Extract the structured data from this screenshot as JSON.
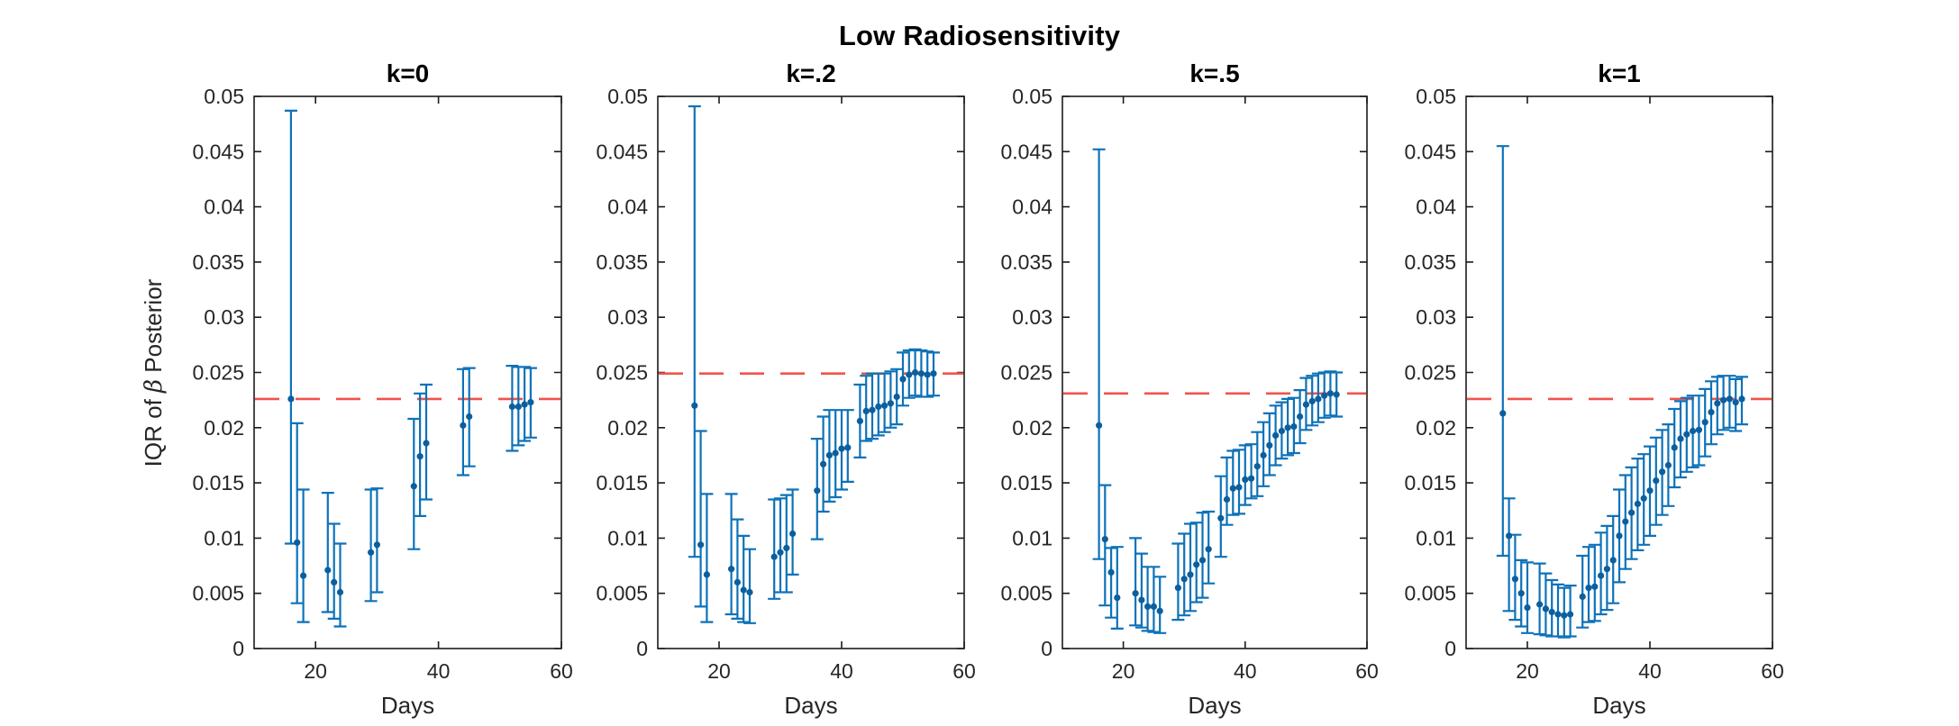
{
  "figure": {
    "title": "Low Radiosensitivity",
    "ylabel_prefix": "IQR of ",
    "ylabel_symbol": "β",
    "ylabel_suffix": " Posterior",
    "colors": {
      "errorbar_line": "#0d72b9",
      "marker_dot": "#0b5f9e",
      "reference_line": "#f0534a",
      "axis_box": "#1c1c1c",
      "tick_text": "#262626"
    }
  },
  "chart_data": [
    {
      "type": "errorbar",
      "title": "k=0",
      "xlabel": "Days",
      "xlim": [
        10,
        60
      ],
      "ylim": [
        0,
        0.05
      ],
      "x_ticks": [
        20,
        40,
        60
      ],
      "x_tick_labels": [
        "20",
        "40",
        "60"
      ],
      "y_ticks": [
        0,
        0.005,
        0.01,
        0.015,
        0.02,
        0.025,
        0.03,
        0.035,
        0.04,
        0.045,
        0.05
      ],
      "y_tick_labels": [
        "0",
        "0.005",
        "0.01",
        "0.015",
        "0.02",
        "0.025",
        "0.03",
        "0.035",
        "0.04",
        "0.045",
        "0.05"
      ],
      "reference_line_y": 0.0226,
      "legend": null,
      "grid": false,
      "points": [
        [
          16,
          0.0226,
          0.0095,
          0.0487
        ],
        [
          17,
          0.0096,
          0.0041,
          0.0204
        ],
        [
          18,
          0.0066,
          0.0024,
          0.0144
        ],
        [
          22,
          0.0071,
          0.0033,
          0.0141
        ],
        [
          23,
          0.006,
          0.0027,
          0.0113
        ],
        [
          24,
          0.0051,
          0.002,
          0.0095
        ],
        [
          29,
          0.0087,
          0.0043,
          0.0144
        ],
        [
          30,
          0.0094,
          0.0051,
          0.0145
        ],
        [
          36,
          0.0147,
          0.009,
          0.0208
        ],
        [
          37,
          0.0174,
          0.012,
          0.0231
        ],
        [
          38,
          0.0186,
          0.0135,
          0.0239
        ],
        [
          44,
          0.0202,
          0.0157,
          0.0253
        ],
        [
          45,
          0.021,
          0.0165,
          0.0254
        ],
        [
          52,
          0.0219,
          0.0179,
          0.0256
        ],
        [
          53,
          0.0219,
          0.0184,
          0.0255
        ],
        [
          54,
          0.0221,
          0.0188,
          0.0255
        ],
        [
          55,
          0.0223,
          0.0191,
          0.0254
        ]
      ]
    },
    {
      "type": "errorbar",
      "title": "k=.2",
      "xlabel": "Days",
      "xlim": [
        10,
        60
      ],
      "ylim": [
        0,
        0.05
      ],
      "x_ticks": [
        20,
        40,
        60
      ],
      "x_tick_labels": [
        "20",
        "40",
        "60"
      ],
      "y_ticks": [
        0,
        0.005,
        0.01,
        0.015,
        0.02,
        0.025,
        0.03,
        0.035,
        0.04,
        0.045,
        0.05
      ],
      "y_tick_labels": [
        "0",
        "0.005",
        "0.01",
        "0.015",
        "0.02",
        "0.025",
        "0.03",
        "0.035",
        "0.04",
        "0.045",
        "0.05"
      ],
      "reference_line_y": 0.0249,
      "legend": null,
      "grid": false,
      "points": [
        [
          16,
          0.022,
          0.0083,
          0.0491
        ],
        [
          17,
          0.0094,
          0.0038,
          0.0197
        ],
        [
          18,
          0.0067,
          0.0024,
          0.014
        ],
        [
          22,
          0.0072,
          0.0031,
          0.014
        ],
        [
          23,
          0.006,
          0.0027,
          0.0117
        ],
        [
          24,
          0.0053,
          0.0024,
          0.0102
        ],
        [
          25,
          0.0051,
          0.0023,
          0.009
        ],
        [
          29,
          0.0083,
          0.0045,
          0.0135
        ],
        [
          30,
          0.0087,
          0.0051,
          0.0136
        ],
        [
          31,
          0.0091,
          0.0051,
          0.0139
        ],
        [
          32,
          0.0104,
          0.0067,
          0.0144
        ],
        [
          36,
          0.0143,
          0.0099,
          0.019
        ],
        [
          37,
          0.0167,
          0.0124,
          0.021
        ],
        [
          38,
          0.0175,
          0.0133,
          0.0216
        ],
        [
          39,
          0.0177,
          0.0137,
          0.0216
        ],
        [
          40,
          0.0181,
          0.0144,
          0.0216
        ],
        [
          41,
          0.0182,
          0.0151,
          0.0216
        ],
        [
          43,
          0.0206,
          0.0173,
          0.0239
        ],
        [
          44,
          0.0215,
          0.0188,
          0.0247
        ],
        [
          45,
          0.0216,
          0.019,
          0.0249
        ],
        [
          46,
          0.0219,
          0.0193,
          0.0249
        ],
        [
          47,
          0.022,
          0.0196,
          0.0249
        ],
        [
          48,
          0.0222,
          0.02,
          0.0251
        ],
        [
          49,
          0.0228,
          0.0203,
          0.0253
        ],
        [
          50,
          0.0244,
          0.022,
          0.0268
        ],
        [
          51,
          0.0248,
          0.0227,
          0.027
        ],
        [
          52,
          0.025,
          0.0229,
          0.0271
        ],
        [
          53,
          0.0249,
          0.0228,
          0.027
        ],
        [
          54,
          0.0248,
          0.0228,
          0.0269
        ],
        [
          55,
          0.0249,
          0.0229,
          0.0268
        ]
      ]
    },
    {
      "type": "errorbar",
      "title": "k=.5",
      "xlabel": "Days",
      "xlim": [
        10,
        60
      ],
      "ylim": [
        0,
        0.05
      ],
      "x_ticks": [
        20,
        40,
        60
      ],
      "x_tick_labels": [
        "20",
        "40",
        "60"
      ],
      "y_ticks": [
        0,
        0.005,
        0.01,
        0.015,
        0.02,
        0.025,
        0.03,
        0.035,
        0.04,
        0.045,
        0.05
      ],
      "y_tick_labels": [
        "0",
        "0.005",
        "0.01",
        "0.015",
        "0.02",
        "0.025",
        "0.03",
        "0.035",
        "0.04",
        "0.045",
        "0.05"
      ],
      "reference_line_y": 0.0231,
      "legend": null,
      "grid": false,
      "points": [
        [
          16,
          0.0202,
          0.0081,
          0.0452
        ],
        [
          17,
          0.0099,
          0.0039,
          0.0148
        ],
        [
          18,
          0.0069,
          0.0028,
          0.0091
        ],
        [
          19,
          0.0046,
          0.0018,
          0.0092
        ],
        [
          22,
          0.005,
          0.0021,
          0.01
        ],
        [
          23,
          0.0044,
          0.0019,
          0.0086
        ],
        [
          24,
          0.0038,
          0.0016,
          0.0074
        ],
        [
          25,
          0.0038,
          0.0015,
          0.0074
        ],
        [
          26,
          0.0034,
          0.0014,
          0.0065
        ],
        [
          29,
          0.0055,
          0.0026,
          0.0095
        ],
        [
          30,
          0.0063,
          0.003,
          0.0104
        ],
        [
          31,
          0.0067,
          0.0034,
          0.0113
        ],
        [
          32,
          0.0076,
          0.0042,
          0.0114
        ],
        [
          33,
          0.008,
          0.0046,
          0.0123
        ],
        [
          34,
          0.009,
          0.0059,
          0.0124
        ],
        [
          36,
          0.0118,
          0.0083,
          0.0156
        ],
        [
          37,
          0.0135,
          0.0112,
          0.0173
        ],
        [
          38,
          0.0145,
          0.0121,
          0.0179
        ],
        [
          39,
          0.0146,
          0.0122,
          0.018
        ],
        [
          40,
          0.0153,
          0.013,
          0.0184
        ],
        [
          41,
          0.0154,
          0.0136,
          0.0185
        ],
        [
          42,
          0.0165,
          0.0138,
          0.0196
        ],
        [
          43,
          0.0175,
          0.0147,
          0.0205
        ],
        [
          44,
          0.0184,
          0.0157,
          0.0213
        ],
        [
          45,
          0.0193,
          0.0166,
          0.022
        ],
        [
          46,
          0.0197,
          0.0172,
          0.0223
        ],
        [
          47,
          0.02,
          0.0175,
          0.0226
        ],
        [
          48,
          0.0201,
          0.0177,
          0.0227
        ],
        [
          49,
          0.021,
          0.0186,
          0.0234
        ],
        [
          50,
          0.0221,
          0.0198,
          0.0245
        ],
        [
          51,
          0.0224,
          0.0202,
          0.0247
        ],
        [
          52,
          0.0226,
          0.0205,
          0.0249
        ],
        [
          53,
          0.0229,
          0.0209,
          0.025
        ],
        [
          54,
          0.0231,
          0.0211,
          0.0251
        ],
        [
          55,
          0.023,
          0.021,
          0.025
        ]
      ]
    },
    {
      "type": "errorbar",
      "title": "k=1",
      "xlabel": "Days",
      "xlim": [
        10,
        60
      ],
      "ylim": [
        0,
        0.05
      ],
      "x_ticks": [
        20,
        40,
        60
      ],
      "x_tick_labels": [
        "20",
        "40",
        "60"
      ],
      "y_ticks": [
        0,
        0.005,
        0.01,
        0.015,
        0.02,
        0.025,
        0.03,
        0.035,
        0.04,
        0.045,
        0.05
      ],
      "y_tick_labels": [
        "0",
        "0.005",
        "0.01",
        "0.015",
        "0.02",
        "0.025",
        "0.03",
        "0.035",
        "0.04",
        "0.045",
        "0.05"
      ],
      "reference_line_y": 0.0226,
      "legend": null,
      "grid": false,
      "points": [
        [
          16,
          0.0213,
          0.0084,
          0.0455
        ],
        [
          17,
          0.0102,
          0.0034,
          0.0136
        ],
        [
          18,
          0.0063,
          0.0026,
          0.0103
        ],
        [
          19,
          0.005,
          0.002,
          0.008
        ],
        [
          20,
          0.0037,
          0.0014,
          0.0078
        ],
        [
          22,
          0.004,
          0.0013,
          0.0077
        ],
        [
          23,
          0.0036,
          0.0012,
          0.0068
        ],
        [
          24,
          0.0033,
          0.0011,
          0.0062
        ],
        [
          25,
          0.0031,
          0.0011,
          0.0058
        ],
        [
          26,
          0.003,
          0.001,
          0.0055
        ],
        [
          27,
          0.0031,
          0.0011,
          0.0057
        ],
        [
          29,
          0.0047,
          0.0019,
          0.0084
        ],
        [
          30,
          0.0055,
          0.0024,
          0.0092
        ],
        [
          31,
          0.0056,
          0.0025,
          0.0094
        ],
        [
          32,
          0.0066,
          0.0031,
          0.0105
        ],
        [
          33,
          0.0072,
          0.0035,
          0.0111
        ],
        [
          34,
          0.008,
          0.0041,
          0.012
        ],
        [
          35,
          0.0102,
          0.006,
          0.0144
        ],
        [
          36,
          0.0115,
          0.0072,
          0.0157
        ],
        [
          37,
          0.0123,
          0.0081,
          0.0164
        ],
        [
          38,
          0.0131,
          0.0089,
          0.0172
        ],
        [
          39,
          0.0136,
          0.0094,
          0.0176
        ],
        [
          40,
          0.0143,
          0.0102,
          0.0183
        ],
        [
          41,
          0.0152,
          0.0112,
          0.0191
        ],
        [
          42,
          0.016,
          0.0121,
          0.0198
        ],
        [
          43,
          0.0166,
          0.0129,
          0.0203
        ],
        [
          44,
          0.0182,
          0.0146,
          0.0217
        ],
        [
          45,
          0.019,
          0.0155,
          0.0224
        ],
        [
          46,
          0.0194,
          0.016,
          0.0227
        ],
        [
          47,
          0.0197,
          0.0164,
          0.0229
        ],
        [
          48,
          0.0198,
          0.0166,
          0.0229
        ],
        [
          49,
          0.0205,
          0.0174,
          0.0235
        ],
        [
          50,
          0.0214,
          0.0185,
          0.0242
        ],
        [
          51,
          0.0222,
          0.0194,
          0.0246
        ],
        [
          52,
          0.0225,
          0.0198,
          0.0247
        ],
        [
          53,
          0.0226,
          0.02,
          0.0247
        ],
        [
          54,
          0.0223,
          0.0197,
          0.0244
        ],
        [
          55,
          0.0226,
          0.0203,
          0.0246
        ]
      ]
    }
  ]
}
